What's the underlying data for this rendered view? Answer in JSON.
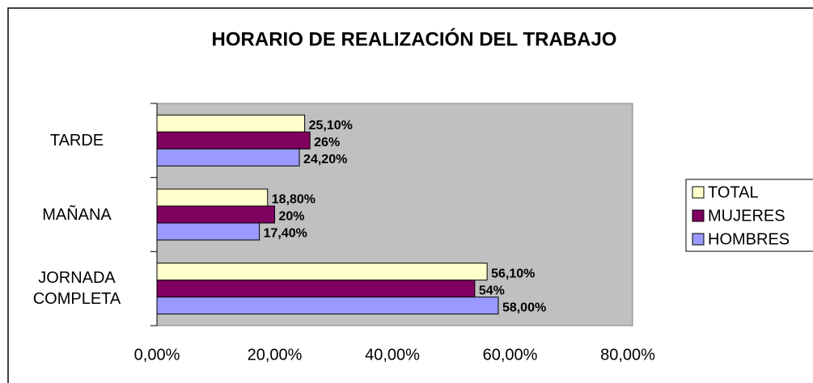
{
  "chart_data": {
    "type": "bar",
    "orientation": "horizontal",
    "title": "HORARIO DE REALIZACIÓN DEL TRABAJO",
    "categories": [
      "TARDE",
      "MAÑANA",
      "JORNADA COMPLETA"
    ],
    "series": [
      {
        "name": "TOTAL",
        "color": "#ffffcc",
        "values": [
          25.1,
          18.8,
          56.1
        ],
        "value_labels": [
          "25,10%",
          "18,80%",
          "56,10%"
        ]
      },
      {
        "name": "MUJERES",
        "color": "#800060",
        "values": [
          26,
          20,
          54
        ],
        "value_labels": [
          "26%",
          "20%",
          "54%"
        ]
      },
      {
        "name": "HOMBRES",
        "color": "#9999ff",
        "values": [
          24.2,
          17.4,
          58
        ],
        "value_labels": [
          "24,20%",
          "17,40%",
          "58,00%"
        ]
      }
    ],
    "xlim": [
      0,
      80
    ],
    "xticks": [
      {
        "value": 0,
        "label": "0,00%"
      },
      {
        "value": 20,
        "label": "20,00%"
      },
      {
        "value": 40,
        "label": "40,00%"
      },
      {
        "value": 60,
        "label": "60,00%"
      },
      {
        "value": 80,
        "label": "80,00%"
      }
    ],
    "plot_background": "#c0c0c0",
    "legend": "right"
  }
}
